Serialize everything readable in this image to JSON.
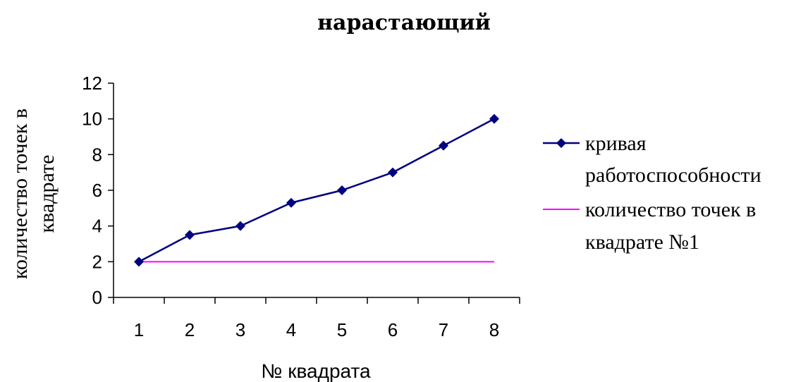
{
  "chart_data": {
    "type": "line",
    "title": "нарастающий",
    "xlabel": "№ квадрата",
    "ylabel": [
      "количество точек в",
      "квадрате"
    ],
    "categories": [
      "1",
      "2",
      "3",
      "4",
      "5",
      "6",
      "7",
      "8"
    ],
    "ylim": [
      0,
      12
    ],
    "yticks": [
      "0",
      "2",
      "4",
      "6",
      "8",
      "10",
      "12"
    ],
    "grid": false,
    "legend_position": "right",
    "series": [
      {
        "name": "кривая работоспособности",
        "name_lines": [
          "кривая",
          "работоспособности"
        ],
        "values": [
          2,
          3.5,
          4,
          5.3,
          6,
          7,
          8.5,
          10
        ],
        "color": "#000080",
        "marker": "diamond"
      },
      {
        "name": "количество точек в квадрате №1",
        "name_lines": [
          "количество точек в",
          "квадрате №1"
        ],
        "values": [
          2,
          2,
          2,
          2,
          2,
          2,
          2,
          2
        ],
        "color": "#FF00FF",
        "marker": "none"
      }
    ]
  }
}
